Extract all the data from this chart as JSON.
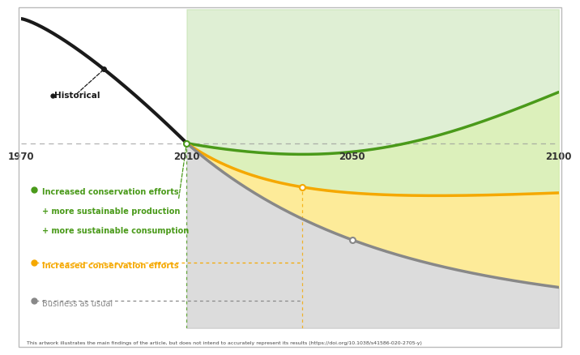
{
  "historical_label": "Historical",
  "line_green_label_1": "Increased conservation efforts",
  "line_green_label_2": "+ more sustainable production",
  "line_green_label_3": "+ more sustainable consumption",
  "line_orange_label": "Increased conservation efforts",
  "line_gray_label": "Business as usual",
  "footnote": "This artwork illustrates the main findings of the article, but does not intend to accurately represent its results (https://doi.org/10.1038/s41586-020-2705-y)",
  "color_black": "#1a1a1a",
  "color_green_line": "#4a9a1a",
  "color_green_fill_top": "#8cc63f",
  "color_green_fill_light": "#d4edaa",
  "color_orange_line": "#f5a800",
  "color_orange_fill": "#fde680",
  "color_gray_line": "#888888",
  "color_gray_fill_dark": "#c0c0c0",
  "color_gray_fill_light": "#e8e8e8",
  "color_dashed": "#999999",
  "background": "#ffffff",
  "border_color": "#bbbbbb",
  "year_labels": [
    "1970",
    "2010",
    "2050",
    "2100"
  ]
}
